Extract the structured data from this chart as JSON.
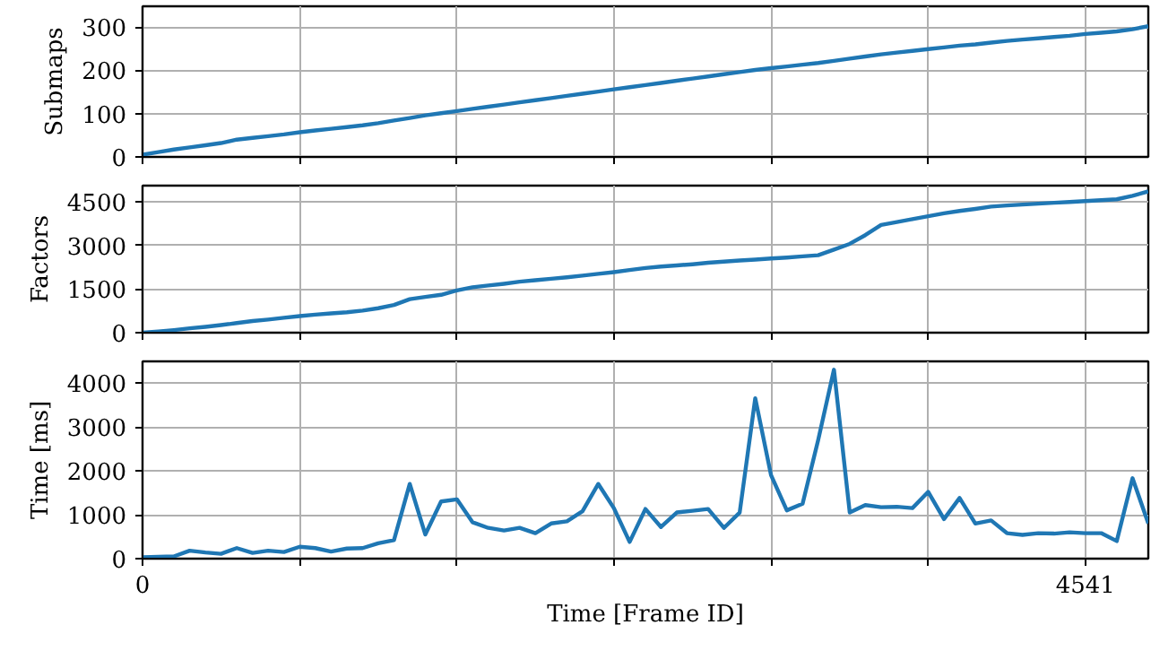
{
  "chart_data": [
    {
      "type": "line",
      "ylabel": "Submaps",
      "grid": true,
      "tick_labels": "y",
      "xlim": [
        0,
        4844
      ],
      "ylim": [
        0,
        348
      ],
      "yticks": [
        0,
        100,
        200,
        300
      ],
      "xticks": [
        {
          "value": 0,
          "label": null
        },
        {
          "value": 757,
          "label": null
        },
        {
          "value": 1514,
          "label": null
        },
        {
          "value": 2270,
          "label": null
        },
        {
          "value": 3027,
          "label": null
        },
        {
          "value": 3784,
          "label": null
        },
        {
          "value": 4541,
          "label": null
        }
      ],
      "x": [
        0,
        76,
        151,
        227,
        303,
        378,
        454,
        530,
        605,
        681,
        757,
        832,
        908,
        984,
        1060,
        1135,
        1211,
        1287,
        1362,
        1438,
        1514,
        1589,
        1665,
        1741,
        1816,
        1892,
        1968,
        2044,
        2119,
        2195,
        2270,
        2346,
        2422,
        2497,
        2573,
        2649,
        2724,
        2800,
        2876,
        2951,
        3027,
        3103,
        3179,
        3254,
        3330,
        3406,
        3481,
        3557,
        3633,
        3708,
        3784,
        3860,
        3935,
        4011,
        4087,
        4163,
        4238,
        4314,
        4390,
        4465,
        4541,
        4617,
        4692,
        4768,
        4844
      ],
      "series": [
        {
          "color": "#1f77b4",
          "values": [
            5,
            11,
            17,
            22,
            27,
            32,
            40,
            44,
            48,
            52,
            57,
            61,
            65,
            69,
            73,
            78,
            84,
            90,
            96,
            101,
            106,
            111,
            116,
            121,
            126,
            131,
            136,
            141,
            146,
            151,
            156,
            161,
            166,
            171,
            176,
            181,
            186,
            191,
            196,
            201,
            205,
            209,
            213,
            217,
            222,
            227,
            232,
            237,
            241,
            245,
            249,
            253,
            257,
            260,
            264,
            268,
            271,
            274,
            277,
            280,
            284,
            287,
            290,
            295,
            302
          ]
        }
      ]
    },
    {
      "type": "line",
      "ylabel": "Factors",
      "grid": true,
      "tick_labels": "y",
      "xlim": [
        0,
        4844
      ],
      "ylim": [
        0,
        5050
      ],
      "yticks": [
        0,
        1500,
        3000,
        4500
      ],
      "xticks": [
        {
          "value": 0,
          "label": null
        },
        {
          "value": 757,
          "label": null
        },
        {
          "value": 1514,
          "label": null
        },
        {
          "value": 2270,
          "label": null
        },
        {
          "value": 3027,
          "label": null
        },
        {
          "value": 3784,
          "label": null
        },
        {
          "value": 4541,
          "label": null
        }
      ],
      "x": [
        0,
        76,
        151,
        227,
        303,
        378,
        454,
        530,
        605,
        681,
        757,
        832,
        908,
        984,
        1060,
        1135,
        1211,
        1287,
        1362,
        1438,
        1514,
        1589,
        1665,
        1741,
        1816,
        1892,
        1968,
        2044,
        2119,
        2195,
        2270,
        2346,
        2422,
        2497,
        2573,
        2649,
        2724,
        2800,
        2876,
        2951,
        3027,
        3103,
        3179,
        3254,
        3330,
        3406,
        3481,
        3557,
        3633,
        3708,
        3784,
        3860,
        3935,
        4011,
        4087,
        4163,
        4238,
        4314,
        4390,
        4465,
        4541,
        4617,
        4692,
        4768,
        4844
      ],
      "series": [
        {
          "color": "#1f77b4",
          "values": [
            0,
            40,
            90,
            150,
            200,
            260,
            330,
            400,
            450,
            510,
            570,
            620,
            660,
            700,
            760,
            840,
            950,
            1150,
            1230,
            1300,
            1450,
            1560,
            1620,
            1680,
            1750,
            1800,
            1850,
            1900,
            1960,
            2020,
            2080,
            2150,
            2220,
            2270,
            2310,
            2350,
            2400,
            2440,
            2480,
            2510,
            2550,
            2580,
            2620,
            2660,
            2850,
            3050,
            3350,
            3700,
            3800,
            3900,
            4000,
            4100,
            4180,
            4250,
            4330,
            4370,
            4400,
            4430,
            4460,
            4490,
            4520,
            4550,
            4580,
            4700,
            4850
          ]
        }
      ]
    },
    {
      "type": "line",
      "ylabel": "Time [ms]",
      "xlabel": "Time [Frame ID]",
      "grid": true,
      "xlim": [
        0,
        4844
      ],
      "ylim": [
        0,
        4490
      ],
      "yticks": [
        0,
        1000,
        2000,
        3000,
        4000
      ],
      "xticks": [
        0,
        {
          "value": 757,
          "label": null
        },
        {
          "value": 1514,
          "label": null
        },
        {
          "value": 2270,
          "label": null
        },
        {
          "value": 3027,
          "label": null
        },
        {
          "value": 3784,
          "label": null
        },
        4541
      ],
      "x": [
        0,
        76,
        151,
        227,
        303,
        378,
        454,
        530,
        605,
        681,
        757,
        832,
        908,
        984,
        1060,
        1135,
        1211,
        1287,
        1362,
        1438,
        1514,
        1589,
        1665,
        1741,
        1816,
        1892,
        1968,
        2044,
        2119,
        2195,
        2270,
        2346,
        2422,
        2497,
        2573,
        2649,
        2724,
        2800,
        2876,
        2951,
        3027,
        3103,
        3179,
        3254,
        3330,
        3406,
        3481,
        3557,
        3633,
        3708,
        3784,
        3860,
        3935,
        4011,
        4087,
        4163,
        4238,
        4314,
        4390,
        4465,
        4541,
        4617,
        4692,
        4768,
        4844
      ],
      "series": [
        {
          "color": "#1f77b4",
          "values": [
            30,
            40,
            50,
            180,
            140,
            110,
            240,
            130,
            180,
            150,
            270,
            240,
            160,
            230,
            240,
            350,
            420,
            1700,
            550,
            1300,
            1350,
            830,
            700,
            640,
            700,
            580,
            800,
            850,
            1080,
            1700,
            1150,
            380,
            1130,
            720,
            1050,
            1090,
            1130,
            700,
            1050,
            3650,
            1900,
            1100,
            1250,
            2700,
            4300,
            1050,
            1220,
            1170,
            1180,
            1150,
            1520,
            900,
            1380,
            800,
            870,
            580,
            540,
            580,
            570,
            600,
            580,
            580,
            400,
            1830,
            800
          ]
        }
      ]
    }
  ]
}
